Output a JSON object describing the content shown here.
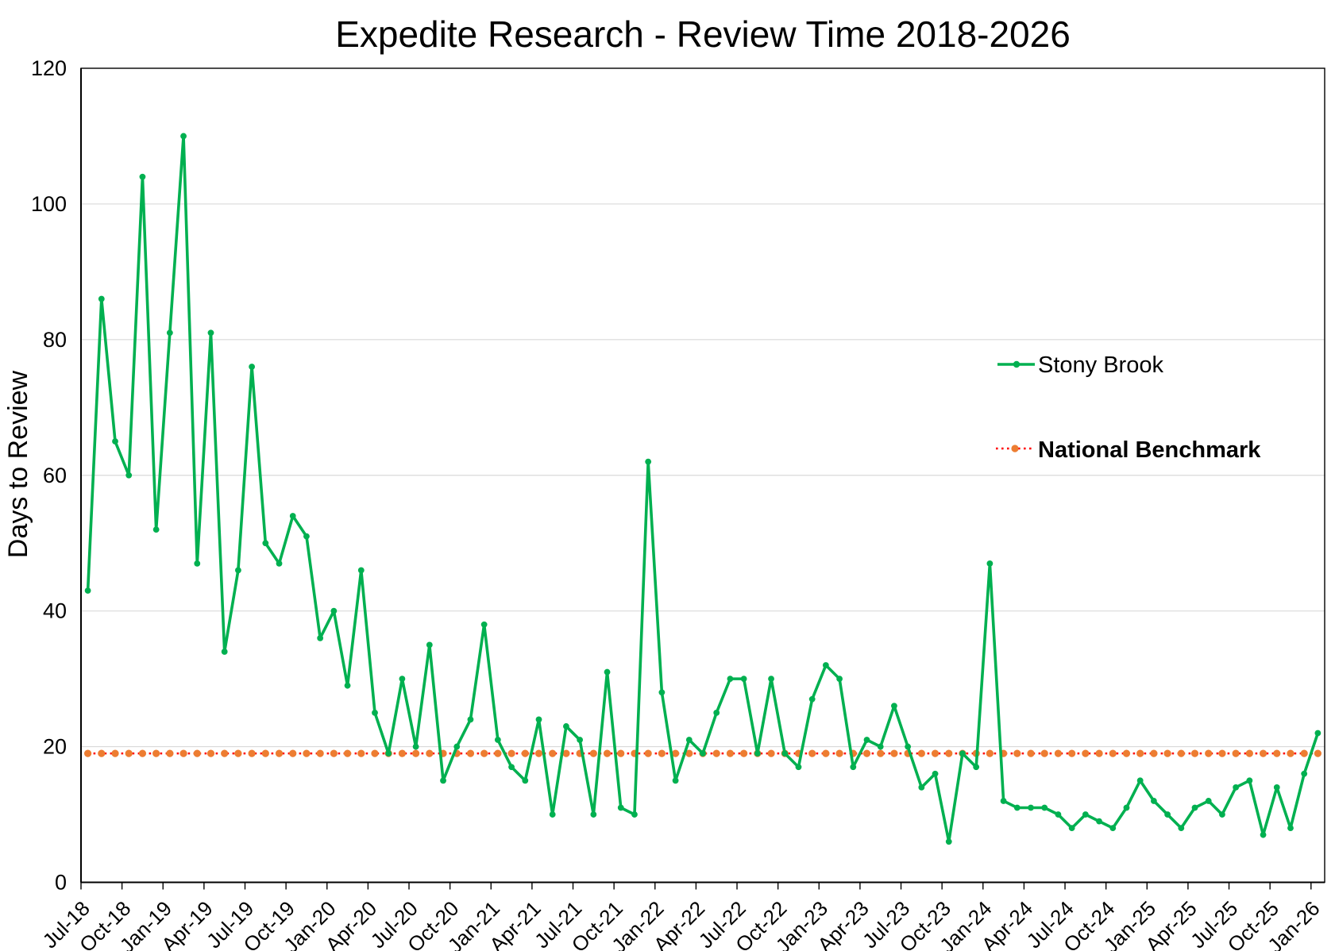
{
  "chart_data": {
    "type": "line",
    "title": "Expedite Research - Review Time 2018-2026",
    "ylabel": "Days to Review",
    "xlabel": "",
    "ylim": [
      0,
      120
    ],
    "ytick_step": 20,
    "grid": "horizontal",
    "gridline_color": "#D9D9D9",
    "axis_color": "#000000",
    "x_interval": "monthly",
    "x_ticklabel_every": 3,
    "x_ticklabels": [
      "Jul-18",
      "Oct-18",
      "Jan-19",
      "Apr-19",
      "Jul-19",
      "Oct-19",
      "Jan-20",
      "Apr-20",
      "Jul-20",
      "Oct-20",
      "Jan-21",
      "Apr-21",
      "Jul-21",
      "Oct-21",
      "Jan-22",
      "Apr-22",
      "Jul-22",
      "Oct-22",
      "Jan-23",
      "Apr-23",
      "Jul-23",
      "Oct-23",
      "Jan-24",
      "Apr-24",
      "Jul-24",
      "Oct-24",
      "Jan-25",
      "Apr-25",
      "Jul-25",
      "Oct-25",
      "Jan-26"
    ],
    "categories": [
      "Jul-18",
      "Aug-18",
      "Sep-18",
      "Oct-18",
      "Nov-18",
      "Dec-18",
      "Jan-19",
      "Feb-19",
      "Mar-19",
      "Apr-19",
      "May-19",
      "Jun-19",
      "Jul-19",
      "Aug-19",
      "Sep-19",
      "Oct-19",
      "Nov-19",
      "Dec-19",
      "Jan-20",
      "Feb-20",
      "Mar-20",
      "Apr-20",
      "May-20",
      "Jun-20",
      "Jul-20",
      "Aug-20",
      "Sep-20",
      "Oct-20",
      "Nov-20",
      "Dec-20",
      "Jan-21",
      "Feb-21",
      "Mar-21",
      "Apr-21",
      "May-21",
      "Jun-21",
      "Jul-21",
      "Aug-21",
      "Sep-21",
      "Oct-21",
      "Nov-21",
      "Dec-21",
      "Jan-22",
      "Feb-22",
      "Mar-22",
      "Apr-22",
      "May-22",
      "Jun-22",
      "Jul-22",
      "Aug-22",
      "Sep-22",
      "Oct-22",
      "Nov-22",
      "Dec-22",
      "Jan-23",
      "Feb-23",
      "Mar-23",
      "Apr-23",
      "May-23",
      "Jun-23",
      "Jul-23",
      "Aug-23",
      "Sep-23",
      "Oct-23",
      "Nov-23",
      "Dec-23",
      "Jan-24",
      "Feb-24",
      "Mar-24",
      "Apr-24",
      "May-24",
      "Jun-24",
      "Jul-24",
      "Aug-24",
      "Sep-24",
      "Oct-24",
      "Nov-24",
      "Dec-24",
      "Jan-25",
      "Feb-25",
      "Mar-25",
      "Apr-25",
      "May-25",
      "Jun-25",
      "Jul-25",
      "Aug-25",
      "Sep-25",
      "Oct-25",
      "Nov-25",
      "Dec-25",
      "Jan-26"
    ],
    "series": [
      {
        "name": "Stony Brook",
        "color": "#00B050",
        "marker": "circle",
        "values": [
          43,
          86,
          65,
          60,
          104,
          52,
          81,
          110,
          47,
          81,
          34,
          46,
          76,
          50,
          47,
          54,
          51,
          36,
          40,
          29,
          46,
          25,
          19,
          30,
          20,
          35,
          15,
          20,
          24,
          38,
          21,
          17,
          15,
          24,
          10,
          23,
          21,
          10,
          31,
          11,
          10,
          62,
          28,
          15,
          21,
          19,
          25,
          30,
          30,
          19,
          30,
          19,
          17,
          27,
          32,
          30,
          17,
          21,
          20,
          26,
          20,
          14,
          16,
          6,
          19,
          17,
          47,
          12,
          11,
          11,
          11,
          10,
          8,
          10,
          9,
          8,
          11,
          15,
          12,
          10,
          8,
          11,
          12,
          10,
          14,
          15,
          7,
          14,
          8,
          16,
          22
        ]
      },
      {
        "name": "National Benchmark",
        "color": "#FF0000",
        "marker_color": "#ED7D31",
        "line_style": "dotted",
        "constant_value": 19
      }
    ],
    "legend_position": "right-middle"
  },
  "legend": {
    "stony_brook_label": "Stony Brook",
    "benchmark_label": "National Benchmark"
  },
  "header": {
    "title": "Expedite Research - Review Time 2018-2026"
  },
  "axes": {
    "y_title": "Days to Review"
  }
}
